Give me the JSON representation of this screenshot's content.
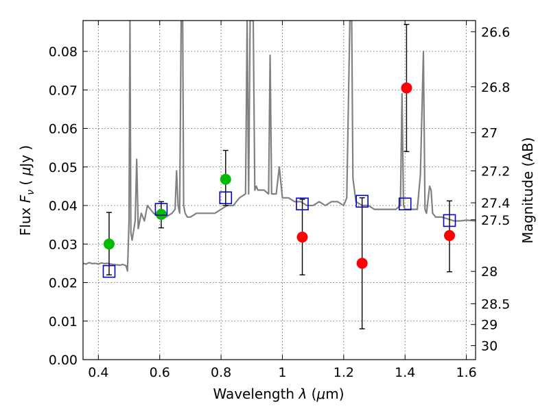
{
  "chart_data": {
    "type": "scatter",
    "xlabel": "Wavelength  λ (μm)",
    "ylabel": "Flux  F_ν  ( μJy )",
    "ylabel_parts": {
      "a": "Flux ",
      "b": "F",
      "c": "ν",
      "d": "  ( ",
      "e": "μ",
      "f": "Jy )"
    },
    "xlabel_parts": {
      "a": "Wavelength  ",
      "b": "λ",
      "c": " (",
      "d": "μ",
      "e": "m)"
    },
    "y2label": "Magnitude (AB)",
    "xlim": [
      0.35,
      1.63
    ],
    "ylim": [
      0.0,
      0.088
    ],
    "grid": true,
    "x_ticks": [
      0.4,
      0.6,
      0.8,
      1.0,
      1.2,
      1.4,
      1.6
    ],
    "x_tick_labels": [
      "0.4",
      "0.6",
      "0.8",
      "1",
      "1.2",
      "1.4",
      "1.6"
    ],
    "y_ticks": [
      0.0,
      0.01,
      0.02,
      0.03,
      0.04,
      0.05,
      0.06,
      0.07,
      0.08
    ],
    "y_tick_labels": [
      "0.00",
      "0.01",
      "0.02",
      "0.03",
      "0.04",
      "0.05",
      "0.06",
      "0.07",
      "0.08"
    ],
    "y2_ticks": [
      {
        "flux": 0.0851,
        "label": "26.6"
      },
      {
        "flux": 0.0708,
        "label": "26.8"
      },
      {
        "flux": 0.0589,
        "label": "27"
      },
      {
        "flux": 0.049,
        "label": "27.2"
      },
      {
        "flux": 0.0407,
        "label": "27.4"
      },
      {
        "flux": 0.0363,
        "label": "27.5"
      },
      {
        "flux": 0.0229,
        "label": "28"
      },
      {
        "flux": 0.0145,
        "label": "28.5"
      },
      {
        "flux": 0.00912,
        "label": "29"
      },
      {
        "flux": 0.00363,
        "label": "30"
      }
    ],
    "series": [
      {
        "kind": "spectrum",
        "color": "#808080",
        "x": [
          0.35,
          0.36,
          0.37,
          0.38,
          0.39,
          0.4,
          0.41,
          0.42,
          0.43,
          0.44,
          0.45,
          0.46,
          0.47,
          0.48,
          0.49,
          0.495,
          0.5,
          0.503,
          0.506,
          0.51,
          0.52,
          0.525,
          0.53,
          0.54,
          0.55,
          0.56,
          0.58,
          0.6,
          0.62,
          0.64,
          0.65,
          0.655,
          0.66,
          0.665,
          0.67,
          0.675,
          0.678,
          0.683,
          0.69,
          0.7,
          0.72,
          0.74,
          0.76,
          0.78,
          0.8,
          0.82,
          0.84,
          0.86,
          0.88,
          0.885,
          0.89,
          0.895,
          0.9,
          0.905,
          0.91,
          0.915,
          0.92,
          0.94,
          0.955,
          0.96,
          0.965,
          0.97,
          0.98,
          0.99,
          1.0,
          1.02,
          1.04,
          1.06,
          1.08,
          1.1,
          1.12,
          1.14,
          1.16,
          1.18,
          1.2,
          1.21,
          1.22,
          1.223,
          1.226,
          1.23,
          1.24,
          1.26,
          1.28,
          1.3,
          1.32,
          1.34,
          1.36,
          1.37,
          1.385,
          1.39,
          1.395,
          1.4,
          1.42,
          1.44,
          1.45,
          1.46,
          1.465,
          1.47,
          1.48,
          1.485,
          1.49,
          1.5,
          1.52,
          1.54,
          1.56,
          1.58,
          1.6,
          1.63
        ],
        "y": [
          0.025,
          0.0248,
          0.0252,
          0.0249,
          0.025,
          0.0248,
          0.0251,
          0.0249,
          0.025,
          0.0248,
          0.0247,
          0.0246,
          0.0245,
          0.0247,
          0.0244,
          0.023,
          0.036,
          0.088,
          0.033,
          0.031,
          0.036,
          0.052,
          0.034,
          0.038,
          0.036,
          0.04,
          0.038,
          0.037,
          0.037,
          0.038,
          0.039,
          0.049,
          0.04,
          0.038,
          0.088,
          0.088,
          0.04,
          0.038,
          0.037,
          0.037,
          0.038,
          0.038,
          0.038,
          0.038,
          0.039,
          0.04,
          0.04,
          0.042,
          0.043,
          0.088,
          0.043,
          0.088,
          0.088,
          0.088,
          0.044,
          0.045,
          0.044,
          0.044,
          0.043,
          0.079,
          0.043,
          0.043,
          0.043,
          0.05,
          0.042,
          0.042,
          0.041,
          0.041,
          0.04,
          0.04,
          0.041,
          0.04,
          0.041,
          0.041,
          0.04,
          0.042,
          0.088,
          0.088,
          0.088,
          0.047,
          0.041,
          0.04,
          0.04,
          0.039,
          0.039,
          0.039,
          0.039,
          0.039,
          0.04,
          0.069,
          0.04,
          0.039,
          0.039,
          0.039,
          0.048,
          0.08,
          0.039,
          0.038,
          0.045,
          0.044,
          0.038,
          0.037,
          0.037,
          0.0365,
          0.036,
          0.036,
          0.0362,
          0.036
        ]
      },
      {
        "kind": "markers",
        "name": "green-points",
        "color": "#00bb00",
        "points": [
          {
            "x": 0.435,
            "y": 0.03,
            "ylow": 0.022,
            "yhigh": 0.0382
          },
          {
            "x": 0.605,
            "y": 0.0377,
            "ylow": 0.0342,
            "yhigh": 0.041
          },
          {
            "x": 0.815,
            "y": 0.0468,
            "ylow": 0.04,
            "yhigh": 0.0543
          }
        ]
      },
      {
        "kind": "markers",
        "name": "red-points",
        "color": "#ff0000",
        "points": [
          {
            "x": 1.065,
            "y": 0.0318,
            "ylow": 0.022,
            "yhigh": 0.0416
          },
          {
            "x": 1.26,
            "y": 0.025,
            "ylow": 0.008,
            "yhigh": 0.042
          },
          {
            "x": 1.405,
            "y": 0.0705,
            "ylow": 0.054,
            "yhigh": 0.087
          },
          {
            "x": 1.545,
            "y": 0.0322,
            "ylow": 0.0228,
            "yhigh": 0.0412
          }
        ]
      },
      {
        "kind": "squares",
        "name": "model-photometry",
        "color": "#0000cc",
        "points": [
          {
            "x": 0.435,
            "y": 0.0229
          },
          {
            "x": 0.605,
            "y": 0.039
          },
          {
            "x": 0.815,
            "y": 0.042
          },
          {
            "x": 1.065,
            "y": 0.0404
          },
          {
            "x": 1.26,
            "y": 0.0411
          },
          {
            "x": 1.4,
            "y": 0.0404
          },
          {
            "x": 1.545,
            "y": 0.0361
          }
        ]
      }
    ]
  }
}
